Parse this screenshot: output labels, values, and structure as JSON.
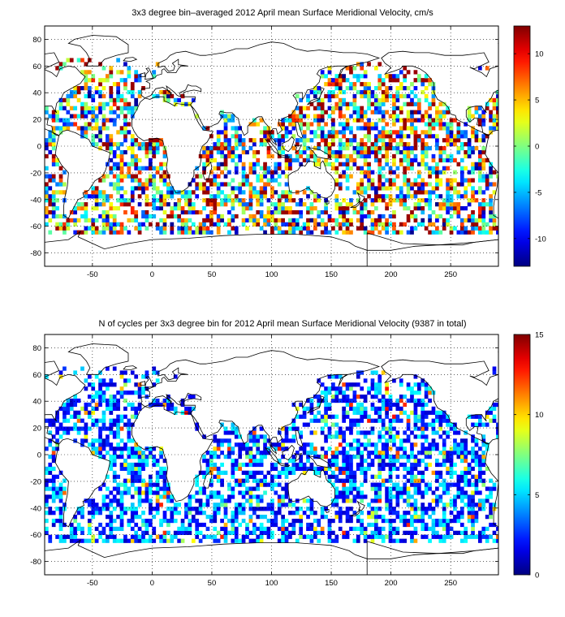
{
  "chart_data": [
    {
      "type": "heatmap",
      "title": "3x3 degree bin–averaged 2012 April mean Surface Meridional Velocity, cm/s",
      "xlim": [
        -90,
        290
      ],
      "ylim": [
        -90,
        90
      ],
      "xticks": [
        -50,
        0,
        50,
        100,
        150,
        200,
        250
      ],
      "yticks": [
        80,
        60,
        40,
        20,
        0,
        -20,
        -40,
        -60,
        -80
      ],
      "grid": true,
      "bin_size_deg": 3,
      "colorbar": {
        "min": -13,
        "max": 13,
        "ticks": [
          10,
          5,
          0,
          -5,
          -10
        ],
        "colormap": "jet"
      }
    },
    {
      "type": "heatmap",
      "title": "N of cycles per 3x3 degree bin for 2012 April mean Surface Meridional Velocity (9387 in total)",
      "xlim": [
        -90,
        290
      ],
      "ylim": [
        -90,
        90
      ],
      "xticks": [
        -50,
        0,
        50,
        100,
        150,
        200,
        250
      ],
      "yticks": [
        80,
        60,
        40,
        20,
        0,
        -20,
        -40,
        -60,
        -80
      ],
      "grid": true,
      "bin_size_deg": 3,
      "colorbar": {
        "min": 0,
        "max": 15,
        "ticks": [
          15,
          10,
          5,
          0
        ],
        "colormap": "jet"
      }
    }
  ]
}
